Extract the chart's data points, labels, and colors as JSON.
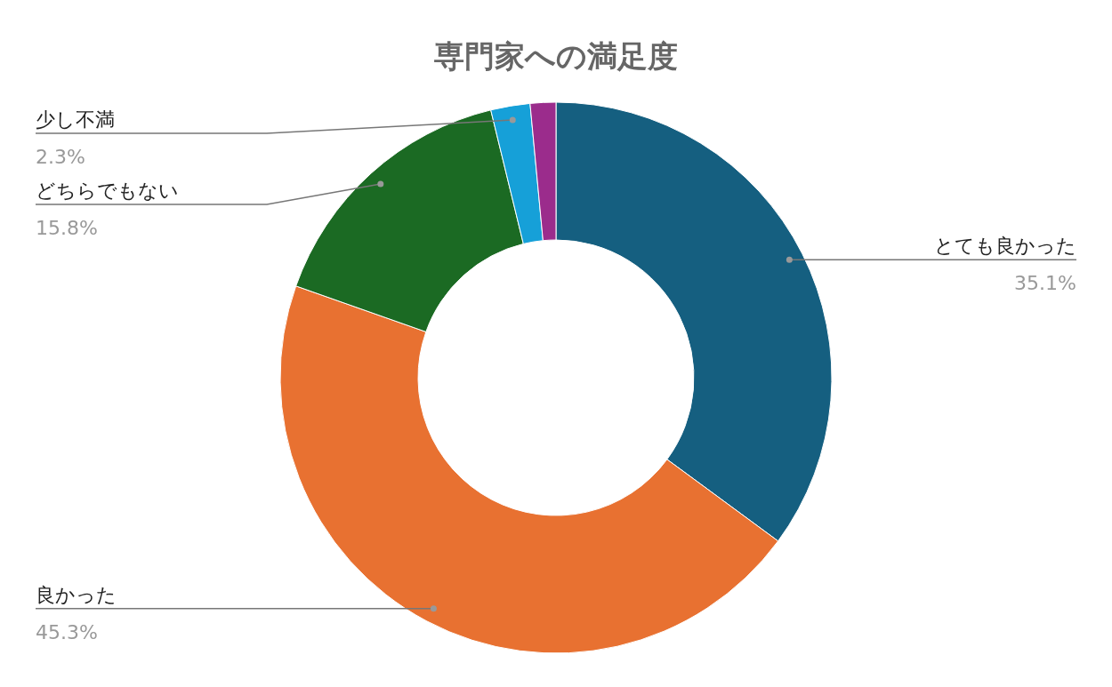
{
  "chart_data": {
    "type": "donut",
    "title": "専門家への満足度",
    "categories": [
      "とても良かった",
      "良かった",
      "どちらでもない",
      "少し不満",
      null
    ],
    "values": [
      35.1,
      45.3,
      15.8,
      2.3,
      1.5
    ],
    "value_labels": [
      "35.1%",
      "45.3%",
      "15.8%",
      "2.3%",
      null
    ],
    "colors": [
      "#155f80",
      "#e87131",
      "#1b6a23",
      "#16a0d8",
      "#9b2c8c"
    ]
  }
}
